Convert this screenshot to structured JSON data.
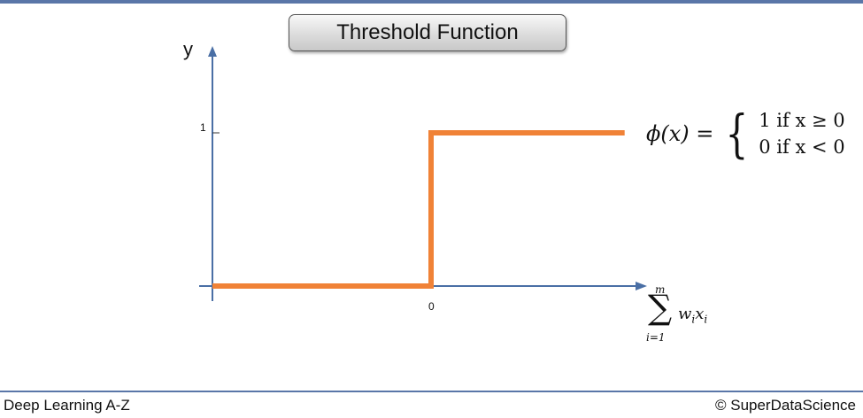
{
  "slide": {
    "title": "Threshold Function",
    "footer_left": "Deep Learning A-Z",
    "footer_right": "© SuperDataScience"
  },
  "formula": {
    "lhs": "ϕ(x) =",
    "case1": "1 if x ≥ 0",
    "case2": "0 if x < 0"
  },
  "axis_x_title": {
    "upper": "m",
    "lower": "i=1",
    "symbol": "∑",
    "body": "wixi"
  },
  "colors": {
    "axis": "#4a6fa5",
    "curve": "#f08237",
    "rule": "#5a76a8"
  },
  "chart_data": {
    "type": "line",
    "title": "Threshold Function",
    "xlabel": "∑ wixi (i=1..m)",
    "ylabel": "y",
    "x_ticks": [
      {
        "value": 0,
        "label": "0"
      }
    ],
    "y_ticks": [
      {
        "value": 1,
        "label": "1"
      }
    ],
    "xlim": [
      -1,
      1
    ],
    "ylim": [
      0,
      1.1
    ],
    "grid": false,
    "series": [
      {
        "x": [
          -1,
          0,
          0,
          0.9
        ],
        "y": [
          0,
          0,
          1,
          1
        ]
      }
    ]
  }
}
